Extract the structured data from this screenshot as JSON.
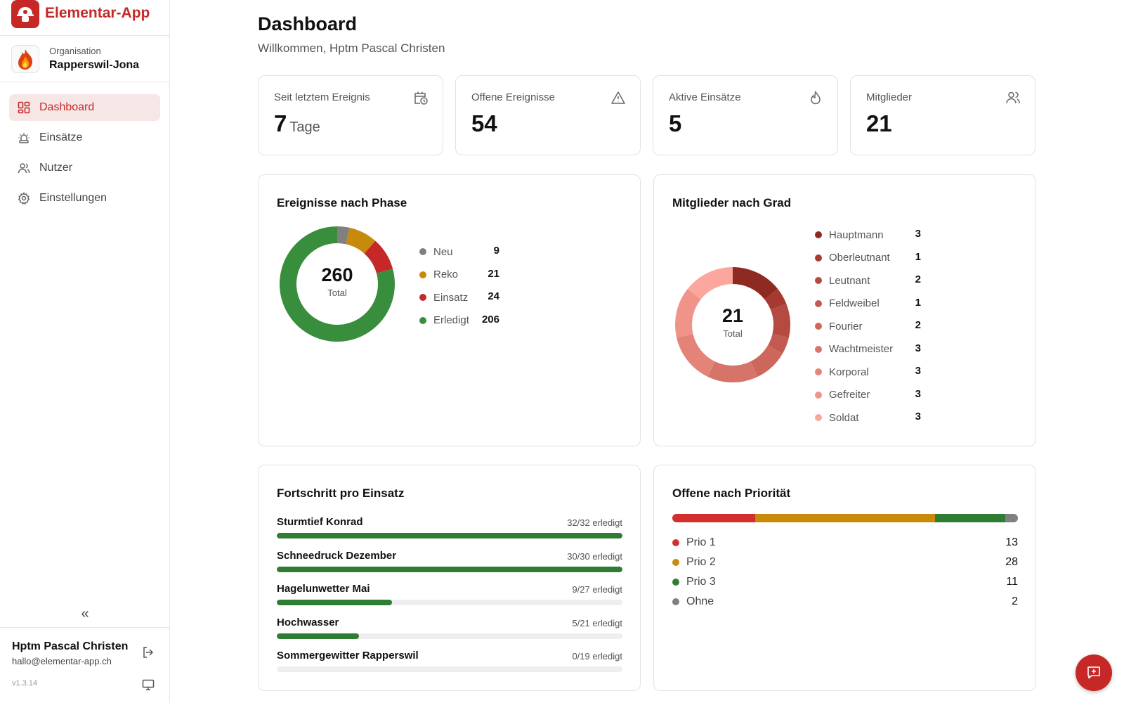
{
  "brand": {
    "name": "Elementar-App"
  },
  "organisation": {
    "label": "Organisation",
    "name": "Rapperswil-Jona"
  },
  "nav": [
    {
      "label": "Dashboard",
      "icon": "dashboard-icon",
      "active": true
    },
    {
      "label": "Einsätze",
      "icon": "siren-icon",
      "active": false
    },
    {
      "label": "Nutzer",
      "icon": "users-icon",
      "active": false
    },
    {
      "label": "Einstellungen",
      "icon": "gear-icon",
      "active": false
    }
  ],
  "sidebar": {
    "collapse_glyph": "«"
  },
  "user": {
    "name": "Hptm Pascal Christen",
    "email": "hallo@elementar-app.ch",
    "version": "v1.3.14"
  },
  "header": {
    "title": "Dashboard",
    "subtitle": "Willkommen, Hptm Pascal Christen"
  },
  "stats": [
    {
      "label": "Seit letztem Ereignis",
      "value": "7",
      "unit": "Tage",
      "icon": "calendar-clock-icon"
    },
    {
      "label": "Offene Ereignisse",
      "value": "54",
      "unit": "",
      "icon": "warning-triangle-icon"
    },
    {
      "label": "Aktive Einsätze",
      "value": "5",
      "unit": "",
      "icon": "flame-icon"
    },
    {
      "label": "Mitglieder",
      "value": "21",
      "unit": "",
      "icon": "users-icon"
    }
  ],
  "phase_card": {
    "title": "Ereignisse nach Phase",
    "total": "260",
    "total_label": "Total"
  },
  "grade_card": {
    "title": "Mitglieder nach Grad",
    "total": "21",
    "total_label": "Total"
  },
  "progress_card": {
    "title": "Fortschritt pro Einsatz",
    "items": [
      {
        "name": "Sturmtief Konrad",
        "done": 32,
        "total": 32,
        "meta": "32/32 erledigt"
      },
      {
        "name": "Schneedruck Dezember",
        "done": 30,
        "total": 30,
        "meta": "30/30 erledigt"
      },
      {
        "name": "Hagelunwetter Mai",
        "done": 9,
        "total": 27,
        "meta": "9/27 erledigt"
      },
      {
        "name": "Hochwasser",
        "done": 5,
        "total": 21,
        "meta": "5/21 erledigt"
      },
      {
        "name": "Sommergewitter Rapperswil",
        "done": 0,
        "total": 19,
        "meta": "0/19 erledigt"
      }
    ]
  },
  "priority_card": {
    "title": "Offene nach Priorität",
    "items": [
      {
        "label": "Prio 1",
        "value": 13,
        "color": "#d32f2f"
      },
      {
        "label": "Prio 2",
        "value": 28,
        "color": "#c88a0a"
      },
      {
        "label": "Prio 3",
        "value": 11,
        "color": "#2e7d32"
      },
      {
        "label": "Ohne",
        "value": 2,
        "color": "#808080"
      }
    ]
  },
  "chart_data": [
    {
      "type": "pie",
      "title": "Ereignisse nach Phase",
      "categories": [
        "Neu",
        "Reko",
        "Einsatz",
        "Erledigt"
      ],
      "values": [
        9,
        21,
        24,
        206
      ],
      "colors": [
        "#808080",
        "#c88a0a",
        "#c62828",
        "#388e3c"
      ],
      "donut": true,
      "legend": "right"
    },
    {
      "type": "pie",
      "title": "Mitglieder nach Grad",
      "categories": [
        "Hauptmann",
        "Oberleutnant",
        "Leutnant",
        "Feldweibel",
        "Fourier",
        "Wachtmeister",
        "Korporal",
        "Gefreiter",
        "Soldat"
      ],
      "values": [
        3,
        1,
        2,
        1,
        2,
        3,
        3,
        3,
        3
      ],
      "colors": [
        "#8e2a22",
        "#a63a31",
        "#b54a41",
        "#c35a50",
        "#cd675c",
        "#d7746a",
        "#e48479",
        "#f0948a",
        "#fba79d"
      ],
      "donut": true,
      "legend": "right"
    }
  ]
}
